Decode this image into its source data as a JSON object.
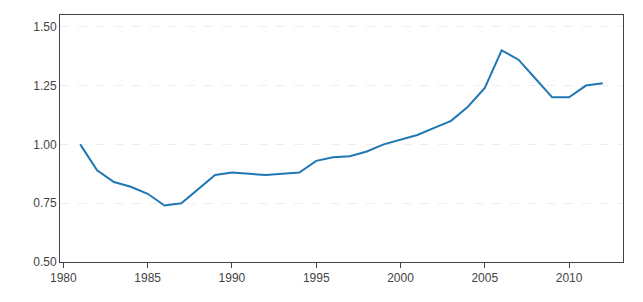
{
  "chart_data": {
    "type": "line",
    "x": [
      1981,
      1982,
      1983,
      1984,
      1985,
      1986,
      1987,
      1988,
      1989,
      1990,
      1991,
      1992,
      1993,
      1994,
      1995,
      1996,
      1997,
      1998,
      1999,
      2000,
      2001,
      2002,
      2003,
      2004,
      2005,
      2006,
      2007,
      2008,
      2009,
      2010,
      2011,
      2012
    ],
    "values": [
      1.0,
      0.89,
      0.84,
      0.82,
      0.79,
      0.74,
      0.75,
      0.81,
      0.87,
      0.88,
      0.875,
      0.87,
      0.875,
      0.88,
      0.93,
      0.945,
      0.95,
      0.97,
      1.0,
      1.02,
      1.04,
      1.07,
      1.1,
      1.16,
      1.24,
      1.4,
      1.36,
      1.28,
      1.2,
      1.2,
      1.25,
      1.26
    ],
    "xlim": [
      1979.8,
      2013.2
    ],
    "xticks": [
      1980,
      1985,
      1990,
      1995,
      2000,
      2005,
      2010
    ],
    "ylim": [
      0.5,
      1.55
    ],
    "yticks": [
      {
        "value": 0.5,
        "label": "0.50"
      },
      {
        "value": 0.75,
        "label": "0.75"
      },
      {
        "value": 1.0,
        "label": "1.00"
      },
      {
        "value": 1.25,
        "label": "1.25"
      },
      {
        "value": 1.5,
        "label": "1.50"
      }
    ],
    "grid": "y"
  }
}
